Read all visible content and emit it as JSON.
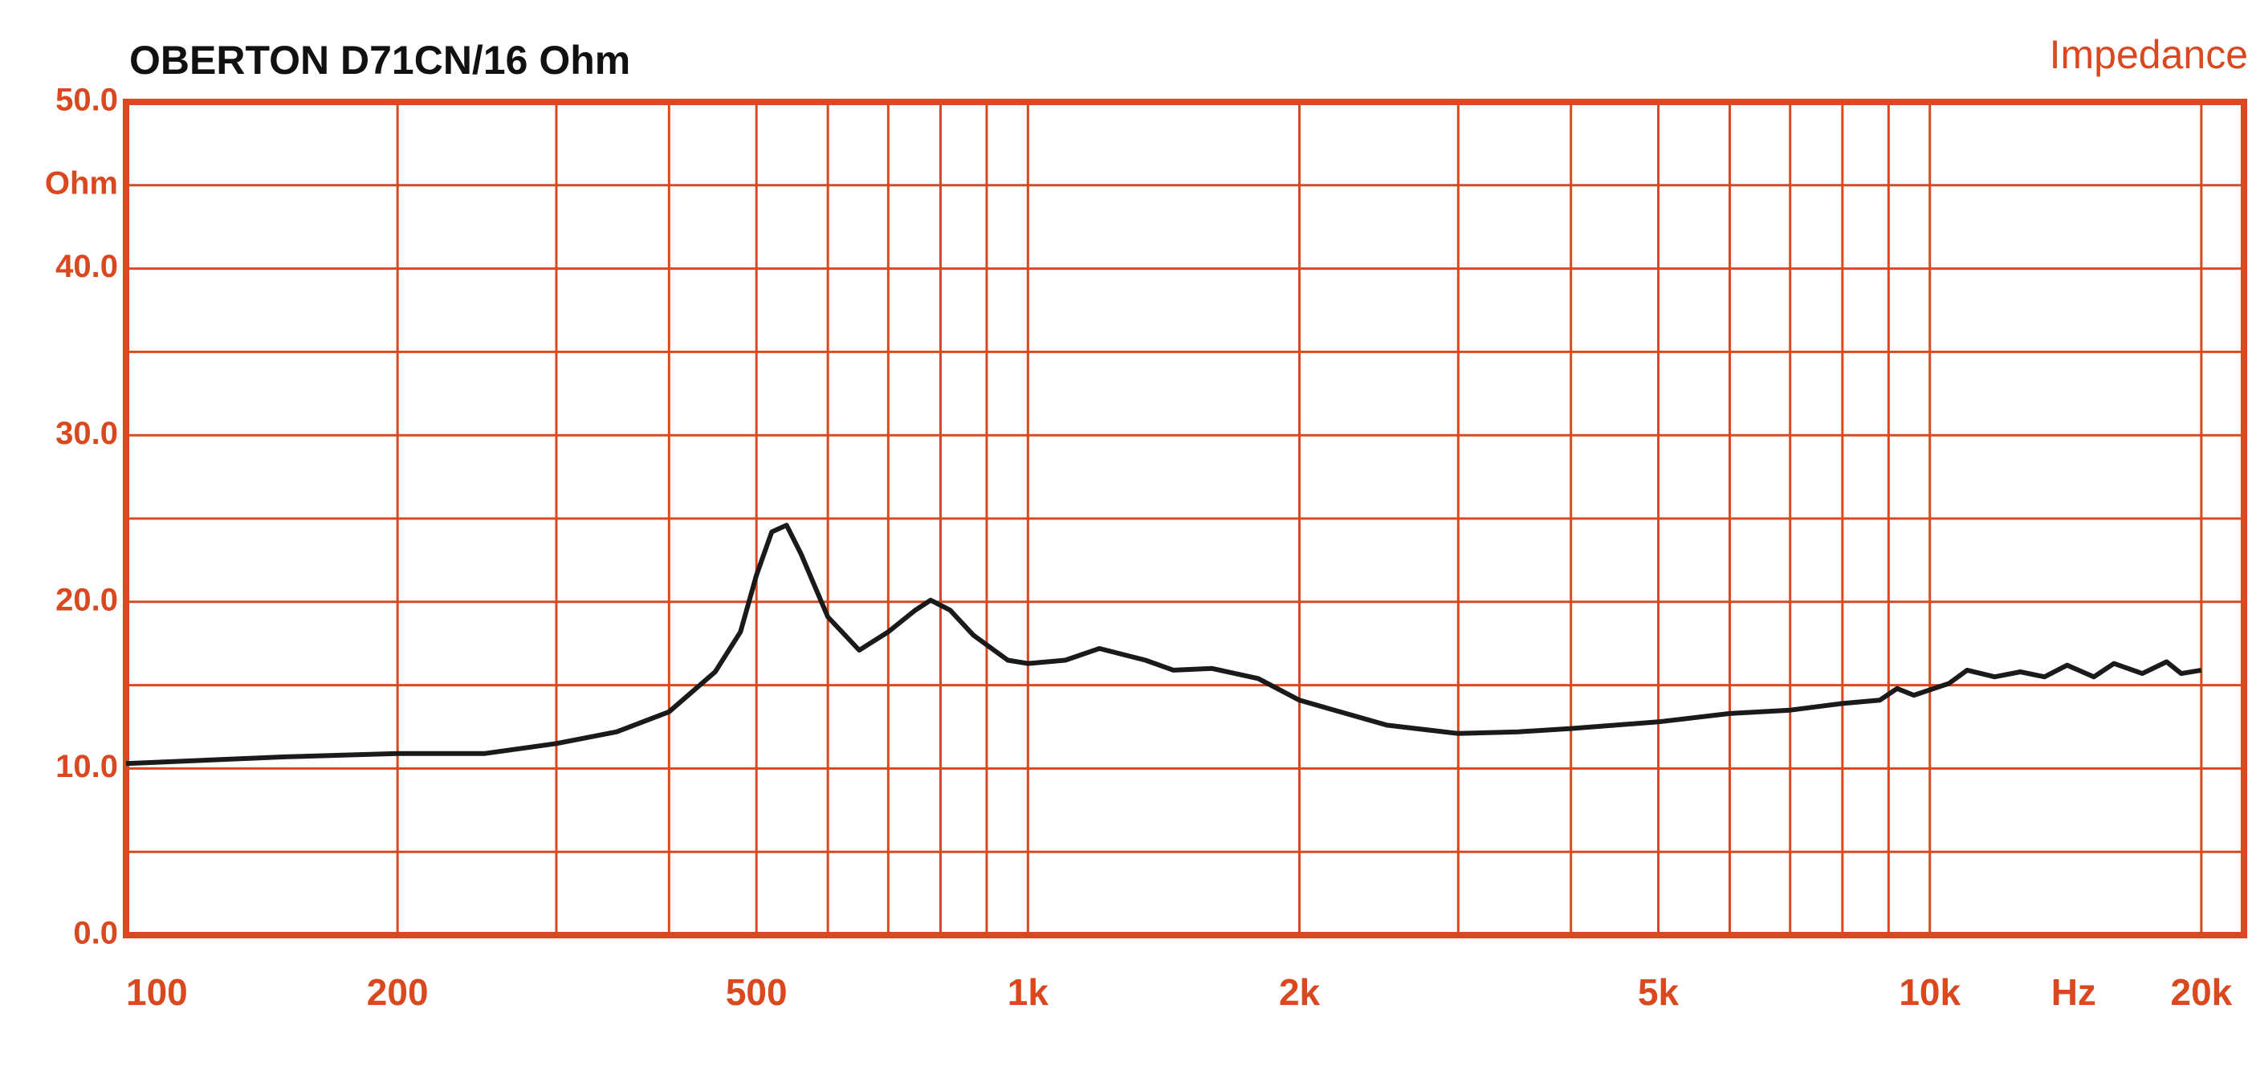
{
  "chart_data": {
    "type": "line",
    "title": "OBERTON  D71CN/16 Ohm",
    "subtitle": "Impedance",
    "x_label": "Hz",
    "y_label": "Ohm",
    "log_x": true,
    "grid": true,
    "grid_color": "#d9481f",
    "xlim": [
      100,
      22300
    ],
    "ylim": [
      0,
      50
    ],
    "xticks": [
      100,
      200,
      500,
      {
        "value": 1000,
        "label": "1k"
      },
      {
        "value": 2000,
        "label": "2k"
      },
      {
        "value": 5000,
        "label": "5k"
      },
      {
        "value": 10000,
        "label": "10k"
      },
      {
        "value": 20000,
        "label": "20k"
      }
    ],
    "xgrid": [
      100,
      200,
      300,
      400,
      500,
      600,
      700,
      800,
      900,
      1000,
      2000,
      3000,
      4000,
      5000,
      6000,
      7000,
      8000,
      9000,
      10000,
      20000
    ],
    "yticks": [
      {
        "value": 0,
        "label": "0.0"
      },
      {
        "value": 10,
        "label": "10.0"
      },
      {
        "value": 20,
        "label": "20.0"
      },
      {
        "value": 30,
        "label": "30.0"
      },
      {
        "value": 40,
        "label": "40.0"
      },
      {
        "value": 50,
        "label": "50.0"
      }
    ],
    "ygrid": [
      0,
      5,
      10,
      15,
      20,
      25,
      30,
      35,
      40,
      45,
      50
    ],
    "series": [
      {
        "name": "Impedance",
        "color": "#1a1a1a",
        "x": [
          100,
          150,
          200,
          250,
          300,
          350,
          400,
          450,
          480,
          500,
          520,
          540,
          560,
          600,
          650,
          700,
          750,
          780,
          820,
          870,
          950,
          1000,
          1100,
          1200,
          1350,
          1450,
          1600,
          1800,
          2000,
          2500,
          3000,
          3500,
          4000,
          5000,
          6000,
          7000,
          8000,
          8800,
          9200,
          9600,
          10500,
          11000,
          11800,
          12600,
          13400,
          14200,
          15200,
          16000,
          17200,
          18300,
          19000,
          20000
        ],
        "values": [
          10.3,
          10.7,
          10.9,
          10.9,
          11.5,
          12.2,
          13.4,
          15.8,
          18.2,
          21.6,
          24.2,
          24.6,
          22.9,
          19.1,
          17.1,
          18.2,
          19.5,
          20.1,
          19.5,
          18.0,
          16.5,
          16.3,
          16.5,
          17.2,
          16.5,
          15.9,
          16.0,
          15.4,
          14.1,
          12.6,
          12.1,
          12.2,
          12.4,
          12.8,
          13.3,
          13.5,
          13.9,
          14.1,
          14.8,
          14.4,
          15.1,
          15.9,
          15.5,
          15.8,
          15.5,
          16.2,
          15.5,
          16.3,
          15.7,
          16.4,
          15.7,
          15.9
        ]
      }
    ]
  }
}
